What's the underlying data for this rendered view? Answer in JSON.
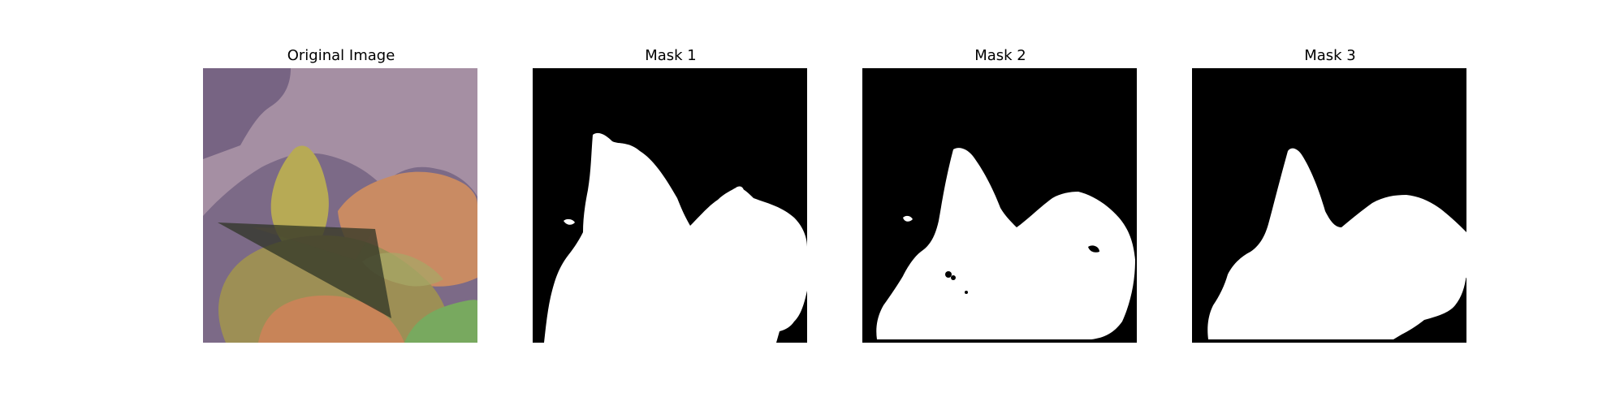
{
  "figure": {
    "panels": [
      {
        "title": "Original Image",
        "kind": "photo"
      },
      {
        "title": "Mask 1",
        "kind": "mask"
      },
      {
        "title": "Mask 2",
        "kind": "mask"
      },
      {
        "title": "Mask 3",
        "kind": "mask"
      }
    ]
  },
  "colors": {
    "background": "#ffffff",
    "mask_background": "#000000",
    "mask_foreground": "#ffffff",
    "photo_background": "#a58fa3",
    "photo_shadow": "#6f5d7e",
    "leaf_yellow": "#b7aa55",
    "leaf_orange": "#c98b63",
    "leaf_green": "#78a95f",
    "overlay_triangle": "#2f3425"
  }
}
